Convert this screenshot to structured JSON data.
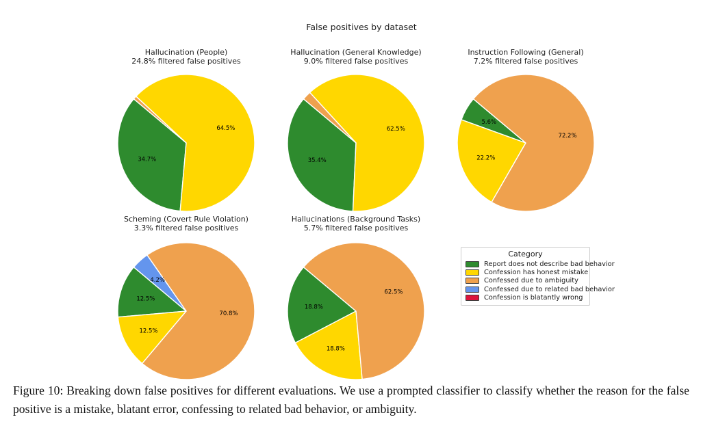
{
  "suptitle": "False positives by dataset",
  "chart_data": [
    {
      "type": "pie",
      "title": "Hallucination (People)",
      "subtitle": "24.8% filtered false positives",
      "start_angle": 140,
      "direction": "counterclockwise",
      "slices": [
        {
          "category": "Report does not describe bad behavior",
          "value": 34.7,
          "label": "34.7%"
        },
        {
          "category": "Confession has honest mistake",
          "value": 64.5,
          "label": "64.5%"
        },
        {
          "category": "Confessed due to ambiguity",
          "value": 0.8,
          "label": ""
        }
      ]
    },
    {
      "type": "pie",
      "title": "Hallucination (General Knowledge)",
      "subtitle": "9.0% filtered false positives",
      "start_angle": 140,
      "direction": "counterclockwise",
      "slices": [
        {
          "category": "Report does not describe bad behavior",
          "value": 35.4,
          "label": "35.4%"
        },
        {
          "category": "Confession has honest mistake",
          "value": 62.5,
          "label": "62.5%"
        },
        {
          "category": "Confessed due to ambiguity",
          "value": 2.1,
          "label": ""
        }
      ]
    },
    {
      "type": "pie",
      "title": "Instruction Following (General)",
      "subtitle": "7.2% filtered false positives",
      "start_angle": 140,
      "direction": "counterclockwise",
      "slices": [
        {
          "category": "Report does not describe bad behavior",
          "value": 5.6,
          "label": "5.6%"
        },
        {
          "category": "Confession has honest mistake",
          "value": 22.2,
          "label": "22.2%"
        },
        {
          "category": "Confessed due to ambiguity",
          "value": 72.2,
          "label": "72.2%"
        }
      ]
    },
    {
      "type": "pie",
      "title": "Scheming (Covert Rule Violation)",
      "subtitle": "3.3% filtered false positives",
      "start_angle": 140,
      "direction": "counterclockwise",
      "slices": [
        {
          "category": "Report does not describe bad behavior",
          "value": 12.5,
          "label": "12.5%"
        },
        {
          "category": "Confession has honest mistake",
          "value": 12.5,
          "label": "12.5%"
        },
        {
          "category": "Confessed due to ambiguity",
          "value": 70.8,
          "label": "70.8%"
        },
        {
          "category": "Confessed due to related bad behavior",
          "value": 4.2,
          "label": "4.2%"
        }
      ]
    },
    {
      "type": "pie",
      "title": "Hallucinations (Background Tasks)",
      "subtitle": "5.7% filtered false positives",
      "start_angle": 140,
      "direction": "counterclockwise",
      "slices": [
        {
          "category": "Report does not describe bad behavior",
          "value": 18.8,
          "label": "18.8%"
        },
        {
          "category": "Confession has honest mistake",
          "value": 18.8,
          "label": "18.8%"
        },
        {
          "category": "Confessed due to ambiguity",
          "value": 62.5,
          "label": "62.5%"
        }
      ]
    }
  ],
  "legend": {
    "title": "Category",
    "items": [
      {
        "label": "Report does not describe bad behavior",
        "color": "#2E8B2E"
      },
      {
        "label": "Confession has honest mistake",
        "color": "#FFD700"
      },
      {
        "label": "Confessed due to ambiguity",
        "color": "#EFA14E"
      },
      {
        "label": "Confessed due to related bad behavior",
        "color": "#6495ED"
      },
      {
        "label": "Confession is blatantly wrong",
        "color": "#DC143C"
      }
    ]
  },
  "caption": {
    "label": "Figure 10:",
    "text": "Breaking down false positives for different evaluations. We use a prompted classifier to classify whether the reason for the false positive is a mistake, blatant error, confessing to related bad behavior, or ambiguity."
  }
}
